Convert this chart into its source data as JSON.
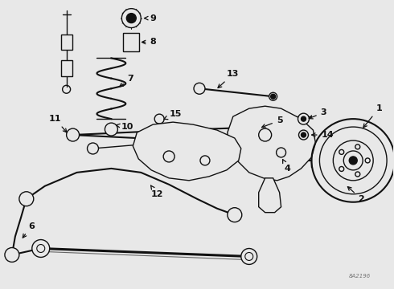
{
  "bg_color": "#e8e8e8",
  "line_color": "#111111",
  "label_color": "#111111",
  "watermark": "8A2196",
  "fig_width": 4.9,
  "fig_height": 3.6,
  "dpi": 100
}
